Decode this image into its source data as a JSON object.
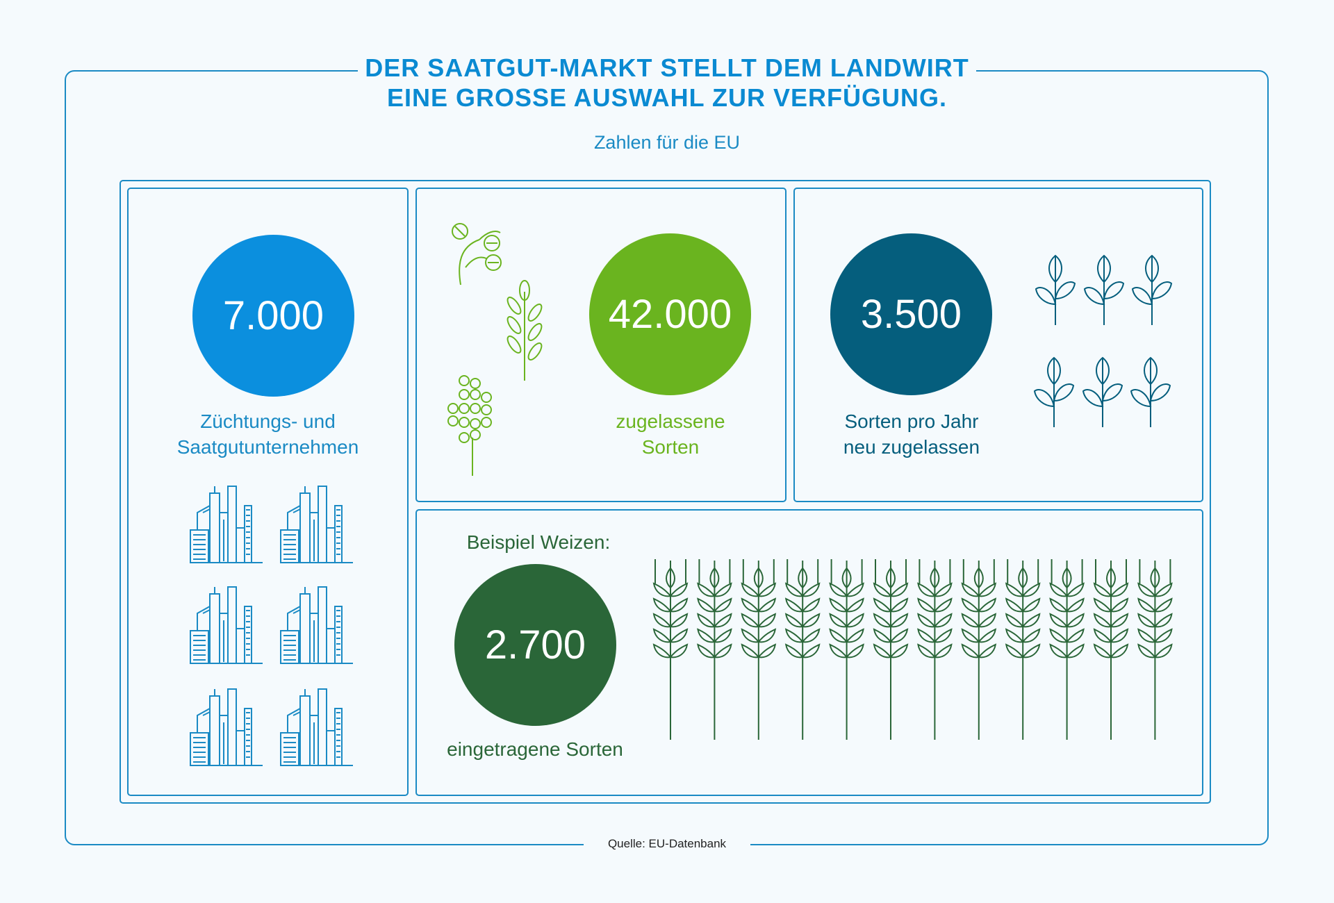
{
  "header": {
    "title_line1": "DER SAATGUT-MARKT STELLT DEM LANDWIRT",
    "title_line2": "EINE GROSSE AUSWAHL ZUR VERFÜGUNG.",
    "subtitle": "Zahlen für die EU"
  },
  "stats": {
    "companies": {
      "value": "7.000",
      "label_line1": "Züchtungs- und",
      "label_line2": "Saatgutunternehmen",
      "color": "#0b8fde"
    },
    "varieties": {
      "value": "42.000",
      "label_line1": "zugelassene",
      "label_line2": "Sorten",
      "color": "#6ab41f"
    },
    "new_per_year": {
      "value": "3.500",
      "label_line1": "Sorten pro Jahr",
      "label_line2": "neu zugelassen",
      "color": "#055e7d"
    },
    "wheat": {
      "heading": "Beispiel Weizen:",
      "value": "2.700",
      "label": "eingetragene Sorten",
      "color": "#2a6638"
    }
  },
  "icons": {
    "buildings": "building-icon",
    "plants": "plant-icon",
    "sprouts": "sprout-icon",
    "wheat": "wheat-icon"
  },
  "footer": {
    "source": "Quelle: EU-Datenbank"
  }
}
